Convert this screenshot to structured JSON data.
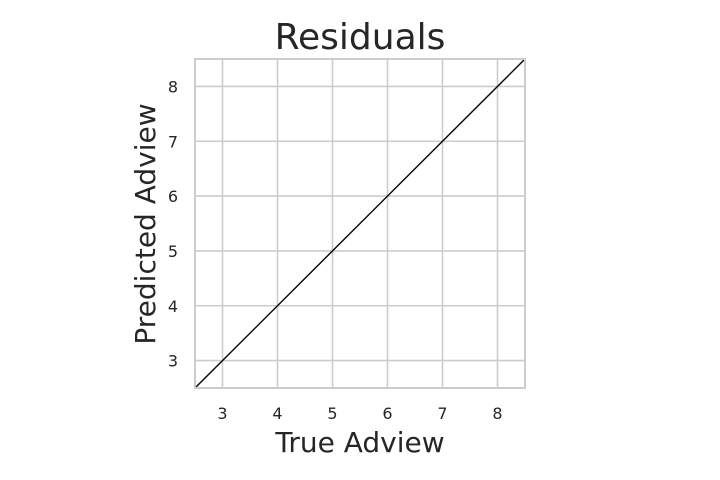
{
  "chart_data": {
    "type": "line",
    "title": "Residuals",
    "xlabel": "True Adview",
    "ylabel": "Predicted Adview",
    "xlim": [
      2.5,
      8.5
    ],
    "ylim": [
      2.5,
      8.5
    ],
    "xticks": [
      3,
      4,
      5,
      6,
      7,
      8
    ],
    "yticks": [
      3,
      4,
      5,
      6,
      7,
      8
    ],
    "grid": true,
    "series": [
      {
        "x": [
          2.5,
          8.5
        ],
        "y": [
          2.5,
          8.5
        ],
        "color": "#000000"
      }
    ]
  }
}
